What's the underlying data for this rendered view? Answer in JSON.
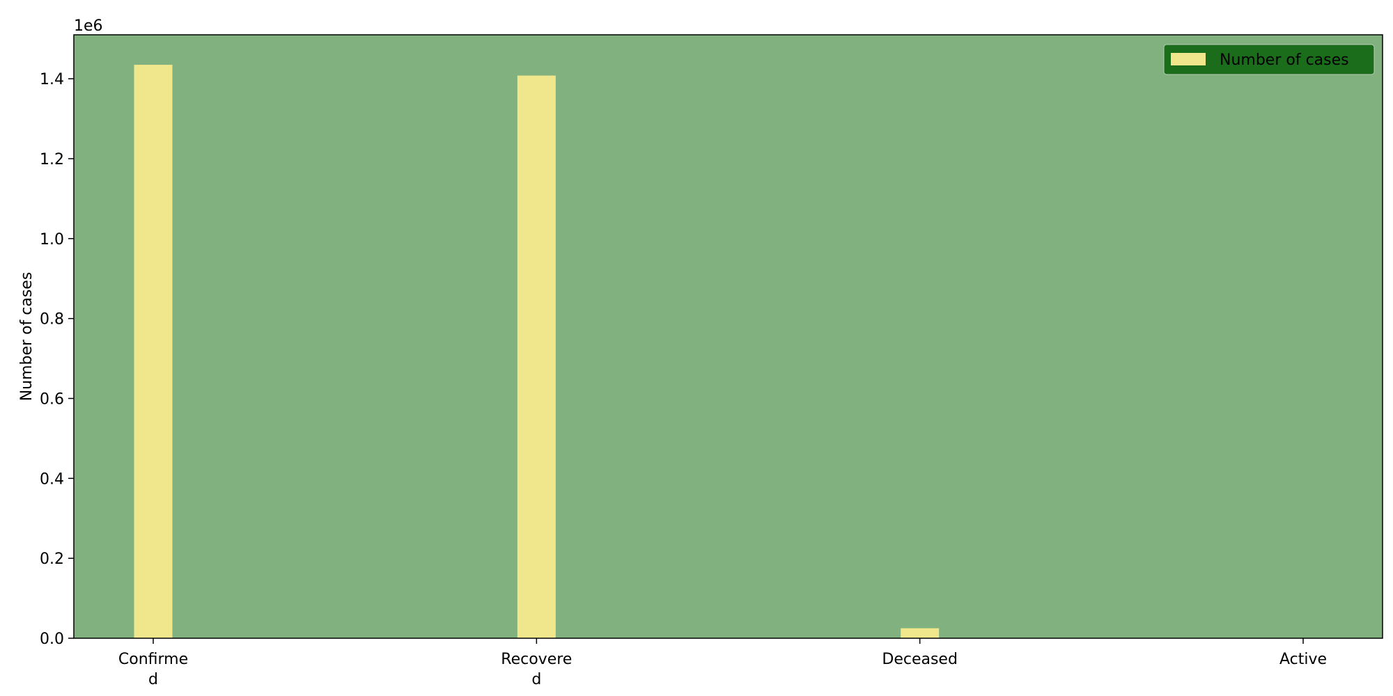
{
  "chart_data": {
    "type": "bar",
    "categories": [
      "Confirmed",
      "Recovered",
      "Deceased",
      "Active"
    ],
    "category_label_lines": [
      [
        "Confirme",
        "d"
      ],
      [
        "Recovere",
        "d"
      ],
      [
        "Deceased"
      ],
      [
        "Active"
      ]
    ],
    "values": [
      1435000,
      1408000,
      25000,
      0
    ],
    "series_name": "Number of cases",
    "title": "",
    "xlabel": "",
    "ylabel": "Number of cases",
    "ylim": [
      0,
      1510000
    ],
    "yticks": [
      0,
      200000,
      400000,
      600000,
      800000,
      1000000,
      1200000,
      1400000
    ],
    "ytick_labels": [
      "0.0",
      "0.2",
      "0.4",
      "0.6",
      "0.8",
      "1.0",
      "1.2",
      "1.4"
    ],
    "offset_label": "1e6",
    "grid": false,
    "legend_position": "top-right",
    "colors": {
      "plot_background": "#80b17e",
      "bar": "#f0e68c",
      "legend_background": "#1b6d1c",
      "frame": "#000000"
    }
  }
}
